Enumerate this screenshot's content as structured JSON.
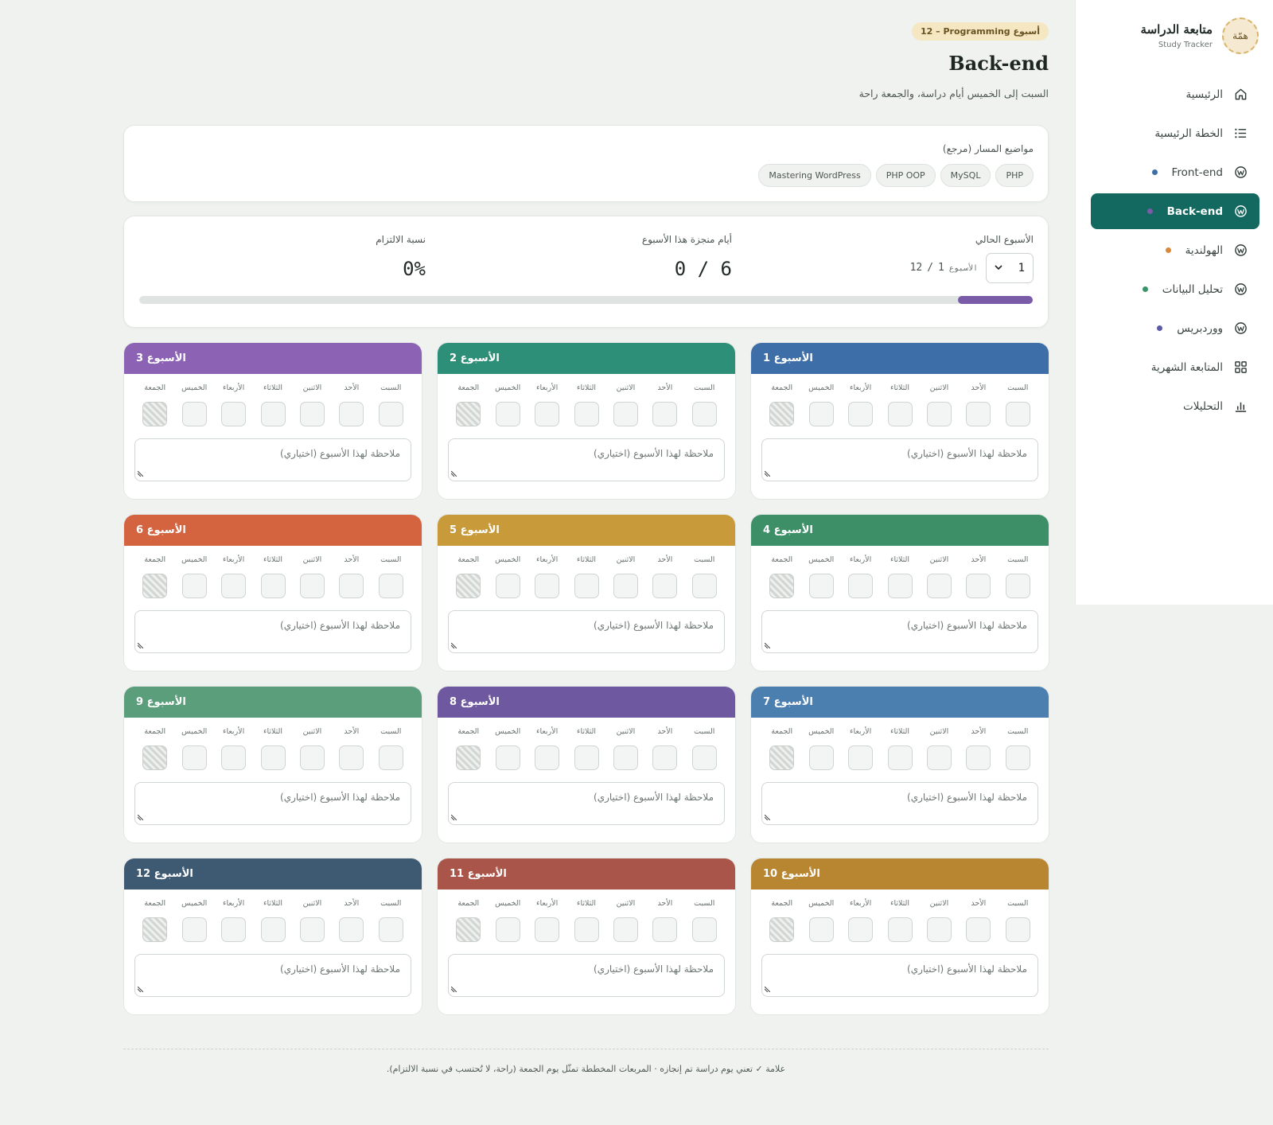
{
  "sidebar": {
    "brand_title": "متابعة الدراسة",
    "brand_subtitle": "Study Tracker",
    "brand_logo_text": "همّة",
    "items": [
      {
        "label": "الرئيسية",
        "icon": "home-icon"
      },
      {
        "label": "الخطة الرئيسية",
        "icon": "list-icon"
      },
      {
        "label": "Front-end",
        "icon": "wordpress-icon",
        "dot": "#3d6ea8"
      },
      {
        "label": "Back-end",
        "icon": "wordpress-icon",
        "dot": "#7a5ba7",
        "active": true
      },
      {
        "label": "الهولندية",
        "icon": "wordpress-icon",
        "dot": "#d9883a"
      },
      {
        "label": "تحليل البيانات",
        "icon": "wordpress-icon",
        "dot": "#3a9468"
      },
      {
        "label": "ووردبريس",
        "icon": "wordpress-icon",
        "dot": "#5a5aa8"
      },
      {
        "label": "المتابعة الشهرية",
        "icon": "grid-icon"
      },
      {
        "label": "التحليلات",
        "icon": "bar-chart-icon"
      }
    ]
  },
  "header": {
    "badge": "12 – Programming أسبوع",
    "title": "Back-end",
    "description": "السبت إلى الخميس أيام دراسة، والجمعة راحة"
  },
  "topics": {
    "label": "مواضيع المسار (مرجع)",
    "chips": [
      "PHP",
      "MySQL",
      "PHP OOP",
      "Mastering WordPress"
    ]
  },
  "progress": {
    "current_week_label": "الأسبوع الحالي",
    "selected_week": "1",
    "week_word": "الأسبوع",
    "week_current": "1",
    "week_separator": "/",
    "week_total": "12",
    "done_days_label": "أيام منجزة هذا الأسبوع",
    "done_days_value": "0 / 6",
    "commitment_label": "نسبة الالتزام",
    "commitment_value": "0%",
    "week_progress_fraction": 0.0833,
    "accent": "#7a5ba7"
  },
  "day_labels": [
    "السبت",
    "الأحد",
    "الاثنين",
    "الثلاثاء",
    "الأربعاء",
    "الخميس",
    "الجمعة"
  ],
  "note_placeholder": "ملاحظة لهذا الأسبوع (اختياري)",
  "weeks": [
    {
      "title": "الأسبوع 1",
      "color": "#3d6ea8"
    },
    {
      "title": "الأسبوع 2",
      "color": "#2e8f78"
    },
    {
      "title": "الأسبوع 3",
      "color": "#8b62b4"
    },
    {
      "title": "الأسبوع 4",
      "color": "#3c8f67"
    },
    {
      "title": "الأسبوع 5",
      "color": "#c99a3a"
    },
    {
      "title": "الأسبوع 6",
      "color": "#d4643f"
    },
    {
      "title": "الأسبوع 7",
      "color": "#4a7fb0"
    },
    {
      "title": "الأسبوع 8",
      "color": "#6e58a0"
    },
    {
      "title": "الأسبوع 9",
      "color": "#5a9e7c"
    },
    {
      "title": "الأسبوع 10",
      "color": "#b88630"
    },
    {
      "title": "الأسبوع 11",
      "color": "#a9554a"
    },
    {
      "title": "الأسبوع 12",
      "color": "#3e5a73"
    }
  ],
  "footer": {
    "note": "علامة ✓ تعني يوم دراسة تم إنجازه · المربعات المخططة تمثّل يوم الجمعة (راحة، لا تُحتسب في نسبة الالتزام)."
  }
}
